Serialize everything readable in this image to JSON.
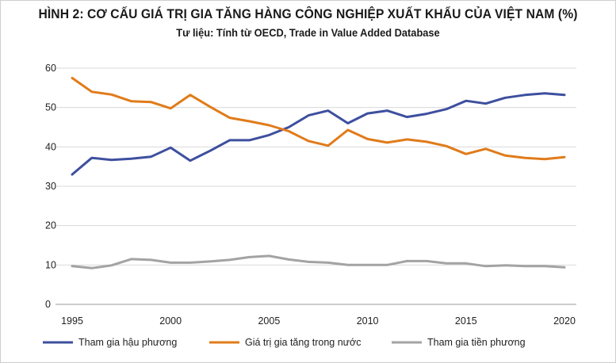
{
  "chart_data": {
    "type": "line",
    "title": "HÌNH 2: CƠ CẤU GIÁ TRỊ GIA TĂNG HÀNG CÔNG NGHIỆP XUẤT KHẨU CỦA VIỆT NAM (%)",
    "subtitle": "Tư liệu: Tính từ OECD, Trade in Value Added Database",
    "xlim": [
      1995,
      2020
    ],
    "ylim": [
      0,
      60
    ],
    "x_ticks": [
      1995,
      2000,
      2005,
      2010,
      2015,
      2020
    ],
    "y_ticks": [
      0,
      10,
      20,
      30,
      40,
      50,
      60
    ],
    "grid": "horizontal",
    "legend_position": "bottom",
    "x": [
      1995,
      1996,
      1997,
      1998,
      1999,
      2000,
      2001,
      2002,
      2003,
      2004,
      2005,
      2006,
      2007,
      2008,
      2009,
      2010,
      2011,
      2012,
      2013,
      2014,
      2015,
      2016,
      2017,
      2018,
      2019,
      2020
    ],
    "series": [
      {
        "name": "Tham gia hậu phương",
        "color": "#3d4f9e",
        "values": [
          33.0,
          37.2,
          36.7,
          37.0,
          37.5,
          39.8,
          36.5,
          39.0,
          41.7,
          41.7,
          43.0,
          45.0,
          48.0,
          49.2,
          46.0,
          48.5,
          49.2,
          47.6,
          48.4,
          49.6,
          51.7,
          51.0,
          52.5,
          53.2,
          53.6,
          53.2
        ]
      },
      {
        "name": "Giá trị gia tăng trong nước",
        "color": "#e07b1a",
        "values": [
          57.5,
          54.0,
          53.3,
          51.6,
          51.4,
          49.8,
          53.2,
          50.2,
          47.4,
          46.5,
          45.5,
          44.0,
          41.5,
          40.3,
          44.3,
          42.0,
          41.1,
          41.9,
          41.3,
          40.2,
          38.2,
          39.5,
          37.8,
          37.2,
          36.9,
          37.4
        ]
      },
      {
        "name": "Tham gia tiền phương",
        "color": "#a3a3a3",
        "values": [
          9.7,
          9.2,
          9.9,
          11.5,
          11.3,
          10.6,
          10.6,
          10.9,
          11.3,
          12.0,
          12.3,
          11.4,
          10.8,
          10.6,
          10.0,
          10.0,
          10.0,
          11.0,
          11.0,
          10.4,
          10.4,
          9.7,
          9.9,
          9.7,
          9.7,
          9.4
        ]
      }
    ]
  }
}
